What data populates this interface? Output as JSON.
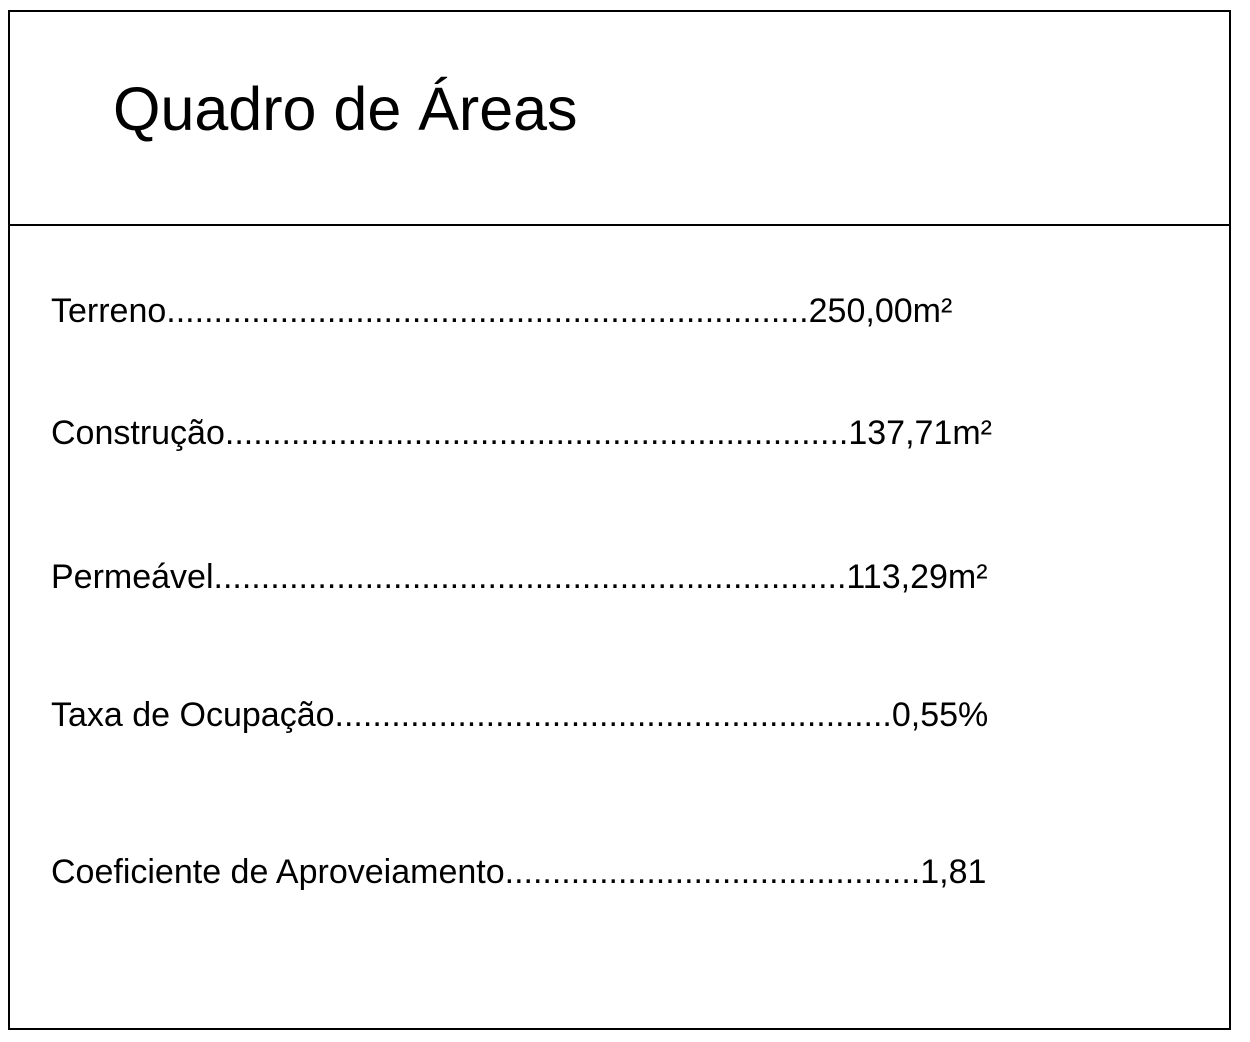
{
  "title": "Quadro de Áreas",
  "rows": [
    {
      "label": "Terreno",
      "leader": "....................................................................",
      "value": "250,00m²"
    },
    {
      "label": "Construção",
      "leader": "..................................................................",
      "value": "137,71m²"
    },
    {
      "label": "Permeável",
      "leader": "...................................................................",
      "value": "113,29m²"
    },
    {
      "label": "Taxa de Ocupação",
      "leader": "...........................................................",
      "value": "0,55%"
    },
    {
      "label": "Coeficiente de Aproveiamento",
      "leader": "............................................",
      "value": "1,81"
    }
  ]
}
